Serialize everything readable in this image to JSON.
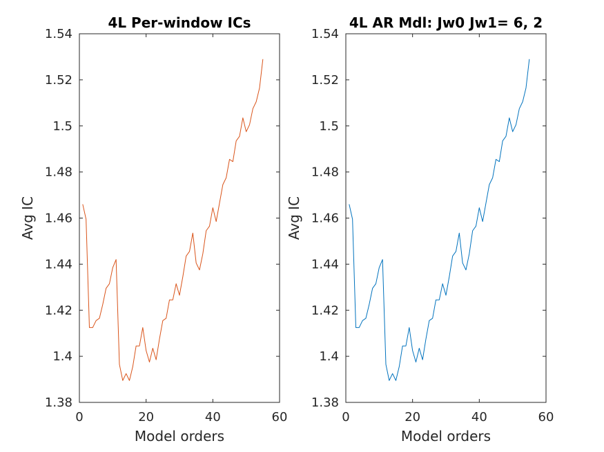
{
  "chart_data": [
    {
      "type": "line",
      "title": "4L Per-window ICs",
      "xlabel": "Model orders",
      "ylabel": "Avg IC",
      "xlim": [
        0,
        60
      ],
      "ylim": [
        1.38,
        1.54
      ],
      "xticks": [
        "0",
        "20",
        "40",
        "60"
      ],
      "yticks": [
        "1.38",
        "1.4",
        "1.42",
        "1.44",
        "1.46",
        "1.48",
        "1.5",
        "1.52",
        "1.54"
      ],
      "grid": false,
      "color": "#d95319",
      "series": [
        {
          "x": [
            1,
            2,
            3,
            4,
            5,
            6,
            7,
            8,
            9,
            10,
            11,
            12,
            13,
            14,
            15,
            16,
            17,
            18,
            19,
            20,
            21,
            22,
            23,
            24,
            25,
            26,
            27,
            28,
            29,
            30,
            31,
            32,
            33,
            34,
            35,
            36,
            37,
            38,
            39,
            40,
            41,
            42,
            43,
            44,
            45,
            46,
            47,
            48,
            49,
            50,
            51,
            52,
            53,
            54,
            55
          ],
          "values": [
            1.466,
            1.4595,
            1.4125,
            1.4125,
            1.4155,
            1.4165,
            1.4225,
            1.4295,
            1.4315,
            1.4385,
            1.442,
            1.3965,
            1.3895,
            1.3925,
            1.3895,
            1.3955,
            1.4045,
            1.4045,
            1.4125,
            1.4025,
            1.3975,
            1.4035,
            1.3985,
            1.4075,
            1.4155,
            1.4165,
            1.4245,
            1.4245,
            1.4315,
            1.4265,
            1.4345,
            1.4435,
            1.4455,
            1.4535,
            1.4405,
            1.4375,
            1.4445,
            1.4545,
            1.4565,
            1.4645,
            1.4585,
            1.4665,
            1.4745,
            1.4775,
            1.4855,
            1.4845,
            1.4935,
            1.4955,
            1.5035,
            1.4975,
            1.5005,
            1.5075,
            1.5105,
            1.5165,
            1.529
          ]
        }
      ]
    },
    {
      "type": "line",
      "title": "4L AR Mdl: Jw0 Jw1= 6, 2",
      "xlabel": "Model orders",
      "ylabel": "Avg IC",
      "xlim": [
        0,
        60
      ],
      "ylim": [
        1.38,
        1.54
      ],
      "xticks": [
        "0",
        "20",
        "40",
        "60"
      ],
      "yticks": [
        "1.38",
        "1.4",
        "1.42",
        "1.44",
        "1.46",
        "1.48",
        "1.5",
        "1.52",
        "1.54"
      ],
      "grid": false,
      "color": "#0072bd",
      "series": [
        {
          "x": [
            1,
            2,
            3,
            4,
            5,
            6,
            7,
            8,
            9,
            10,
            11,
            12,
            13,
            14,
            15,
            16,
            17,
            18,
            19,
            20,
            21,
            22,
            23,
            24,
            25,
            26,
            27,
            28,
            29,
            30,
            31,
            32,
            33,
            34,
            35,
            36,
            37,
            38,
            39,
            40,
            41,
            42,
            43,
            44,
            45,
            46,
            47,
            48,
            49,
            50,
            51,
            52,
            53,
            54,
            55
          ],
          "values": [
            1.466,
            1.4595,
            1.4125,
            1.4125,
            1.4155,
            1.4165,
            1.4225,
            1.4295,
            1.4315,
            1.4385,
            1.442,
            1.3965,
            1.3895,
            1.3925,
            1.3895,
            1.3955,
            1.4045,
            1.4045,
            1.4125,
            1.4025,
            1.3975,
            1.4035,
            1.3985,
            1.4075,
            1.4155,
            1.4165,
            1.4245,
            1.4245,
            1.4315,
            1.4265,
            1.4345,
            1.4435,
            1.4455,
            1.4535,
            1.4405,
            1.4375,
            1.4445,
            1.4545,
            1.4565,
            1.4645,
            1.4585,
            1.4665,
            1.4745,
            1.4775,
            1.4855,
            1.4845,
            1.4935,
            1.4955,
            1.5035,
            1.4975,
            1.5005,
            1.5075,
            1.5105,
            1.5165,
            1.529
          ]
        }
      ]
    }
  ]
}
